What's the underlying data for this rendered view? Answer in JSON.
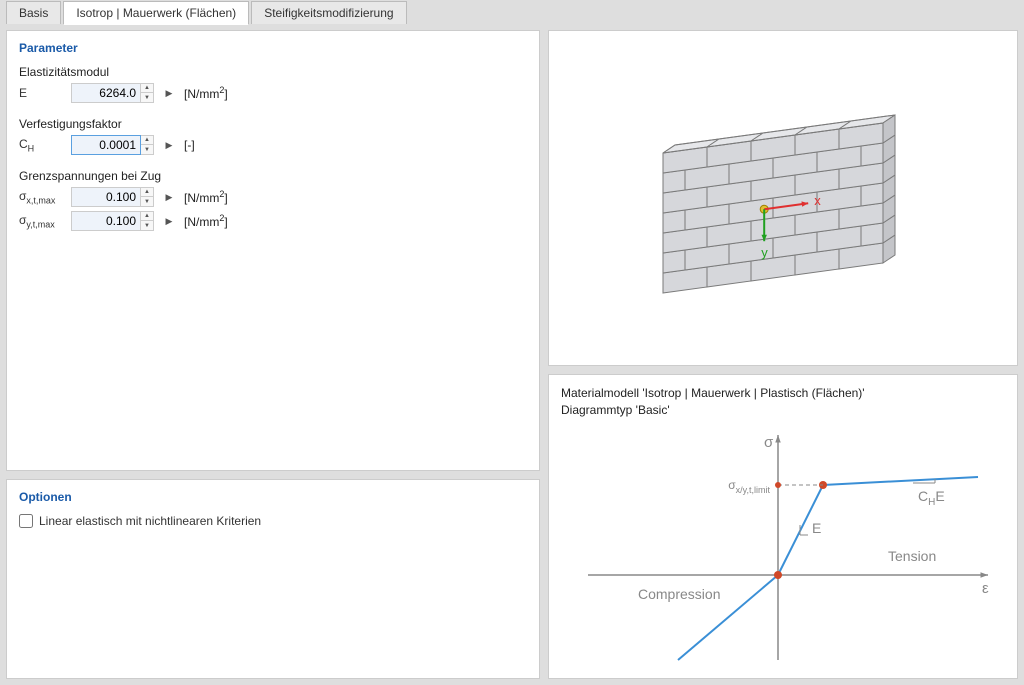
{
  "tabs": {
    "items": [
      {
        "label": "Basis",
        "active": false
      },
      {
        "label": "Isotrop | Mauerwerk (Flächen)",
        "active": true
      },
      {
        "label": "Steifigkeitsmodifizierung",
        "active": false
      }
    ]
  },
  "parameter": {
    "title": "Parameter",
    "elasticity": {
      "label": "Elastizitätsmodul",
      "symbol": "E",
      "value": "6264.0",
      "unit_html": "[N/mm²]"
    },
    "hardening": {
      "label": "Verfestigungsfaktor",
      "symbol": "C",
      "symbol_sub": "H",
      "value": "0.0001",
      "unit_html": "[-]"
    },
    "tension_limit": {
      "label": "Grenzspannungen bei Zug",
      "rows": [
        {
          "symbol": "σ",
          "sub": "x,t,max",
          "value": "0.100",
          "unit_html": "[N/mm²]"
        },
        {
          "symbol": "σ",
          "sub": "y,t,max",
          "value": "0.100",
          "unit_html": "[N/mm²]"
        }
      ]
    }
  },
  "options": {
    "title": "Optionen",
    "linear_elastic_label": "Linear elastisch mit nichtlinearen Kriterien",
    "linear_elastic_checked": false
  },
  "wall": {
    "rows": 7,
    "cols": 5,
    "brick_fill": "#d6d7db",
    "brick_stroke": "#7a7a7a",
    "x_arrow_color": "#e03030",
    "y_arrow_color": "#20a020",
    "origin_color": "#e0c030"
  },
  "diagram": {
    "caption_line1": "Materialmodell 'Isotrop | Mauerwerk | Plastisch (Flächen)'",
    "caption_line2": "Diagrammtyp 'Basic'",
    "axis_color": "#888888",
    "curve_color": "#3a8fd6",
    "point_color": "#d04828",
    "text_color": "#888888",
    "sigma_label": "σ",
    "epsilon_label": "ε",
    "limit_label": "σₓ/ᵧ,ₜ,ₗᵢₘᵢₜ",
    "tension_label": "Tension",
    "compression_label": "Compression",
    "E_label": "E",
    "CHE_label": "C",
    "CHE_sub": "H",
    "CHE_suffix": "E"
  }
}
